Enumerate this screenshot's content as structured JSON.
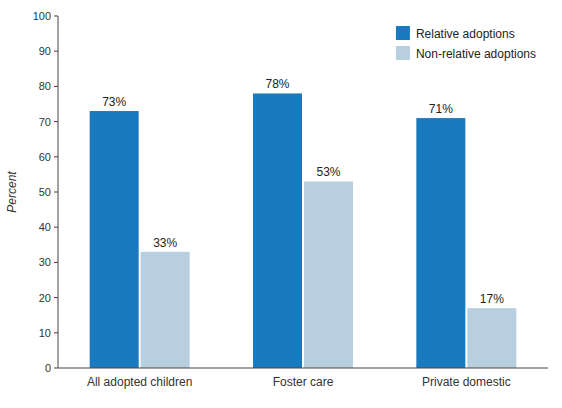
{
  "chart_data": {
    "type": "bar",
    "categories": [
      "All adopted children",
      "Foster care",
      "Private domestic"
    ],
    "series": [
      {
        "name": "Relative adoptions",
        "color": "#1a7abf",
        "values": [
          73,
          78,
          71
        ],
        "value_labels": [
          "73%",
          "78%",
          "71%"
        ]
      },
      {
        "name": "Non-relative adoptions",
        "color": "#b8cfe0",
        "values": [
          33,
          53,
          17
        ],
        "value_labels": [
          "33%",
          "53%",
          "17%"
        ]
      }
    ],
    "y_label": "Percent",
    "ylim": [
      0,
      100
    ],
    "yticks": [
      0,
      10,
      20,
      30,
      40,
      50,
      60,
      70,
      80,
      90,
      100
    ],
    "data_labels": true,
    "legend": "upper right",
    "grid": false
  }
}
